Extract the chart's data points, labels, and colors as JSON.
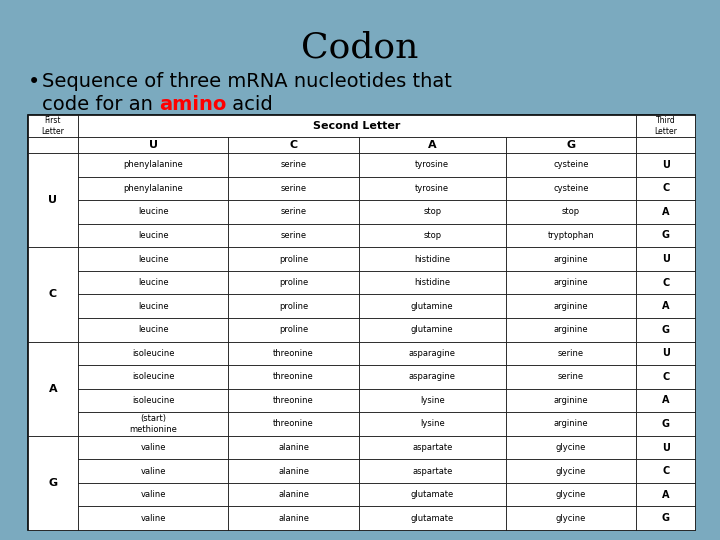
{
  "title": "Codon",
  "line1": "Sequence of three mRNA nucleotides that",
  "line2_pre": "code for an ",
  "line2_red": "amino",
  "line2_post": " acid",
  "bg_color": "#7BAABF",
  "second_letter_header": "Second Letter",
  "col_headers": [
    "U",
    "C",
    "A",
    "G"
  ],
  "rows": [
    {
      "first": "U",
      "third": "U",
      "u": "phenylalanine",
      "c": "serine",
      "a": "tyrosine",
      "g": "cysteine"
    },
    {
      "first": "U",
      "third": "C",
      "u": "phenylalanine",
      "c": "serine",
      "a": "tyrosine",
      "g": "cysteine"
    },
    {
      "first": "U",
      "third": "A",
      "u": "leucine",
      "c": "serine",
      "a": "stop",
      "g": "stop"
    },
    {
      "first": "U",
      "third": "G",
      "u": "leucine",
      "c": "serine",
      "a": "stop",
      "g": "tryptophan"
    },
    {
      "first": "C",
      "third": "U",
      "u": "leucine",
      "c": "proline",
      "a": "histidine",
      "g": "arginine"
    },
    {
      "first": "C",
      "third": "C",
      "u": "leucine",
      "c": "proline",
      "a": "histidine",
      "g": "arginine"
    },
    {
      "first": "C",
      "third": "A",
      "u": "leucine",
      "c": "proline",
      "a": "glutamine",
      "g": "arginine"
    },
    {
      "first": "C",
      "third": "G",
      "u": "leucine",
      "c": "proline",
      "a": "glutamine",
      "g": "arginine"
    },
    {
      "first": "A",
      "third": "U",
      "u": "isoleucine",
      "c": "threonine",
      "a": "asparagine",
      "g": "serine"
    },
    {
      "first": "A",
      "third": "C",
      "u": "isoleucine",
      "c": "threonine",
      "a": "asparagine",
      "g": "serine"
    },
    {
      "first": "A",
      "third": "A",
      "u": "isoleucine",
      "c": "threonine",
      "a": "lysine",
      "g": "arginine"
    },
    {
      "first": "A",
      "third": "G",
      "u": "(start)\nmethionine",
      "c": "threonine",
      "a": "lysine",
      "g": "arginine"
    },
    {
      "first": "G",
      "third": "U",
      "u": "valine",
      "c": "alanine",
      "a": "aspartate",
      "g": "glycine"
    },
    {
      "first": "G",
      "third": "C",
      "u": "valine",
      "c": "alanine",
      "a": "aspartate",
      "g": "glycine"
    },
    {
      "first": "G",
      "third": "A",
      "u": "valine",
      "c": "alanine",
      "a": "glutamate",
      "g": "glycine"
    },
    {
      "first": "G",
      "third": "G",
      "u": "valine",
      "c": "alanine",
      "a": "glutamate",
      "g": "glycine"
    }
  ]
}
